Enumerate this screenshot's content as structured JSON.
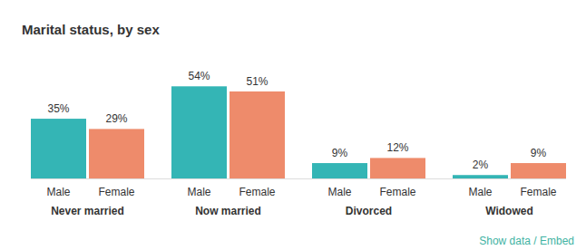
{
  "chart_data": {
    "type": "bar",
    "title": "Marital status, by sex",
    "categories": [
      "Never married",
      "Now married",
      "Divorced",
      "Widowed"
    ],
    "series": [
      {
        "name": "Male",
        "color": "#34b5b5",
        "values": [
          35,
          54,
          9,
          2
        ],
        "value_labels": [
          "35%",
          "54%",
          "9%",
          "2%"
        ]
      },
      {
        "name": "Female",
        "color": "#ee8b6b",
        "values": [
          29,
          51,
          12,
          9
        ],
        "value_labels": [
          "29%",
          "51%",
          "12%",
          "9%"
        ]
      }
    ],
    "ylim": [
      0,
      60
    ],
    "data_labels": true,
    "tick_labels": "x",
    "annotations": [
      "Show data / Embed"
    ]
  }
}
